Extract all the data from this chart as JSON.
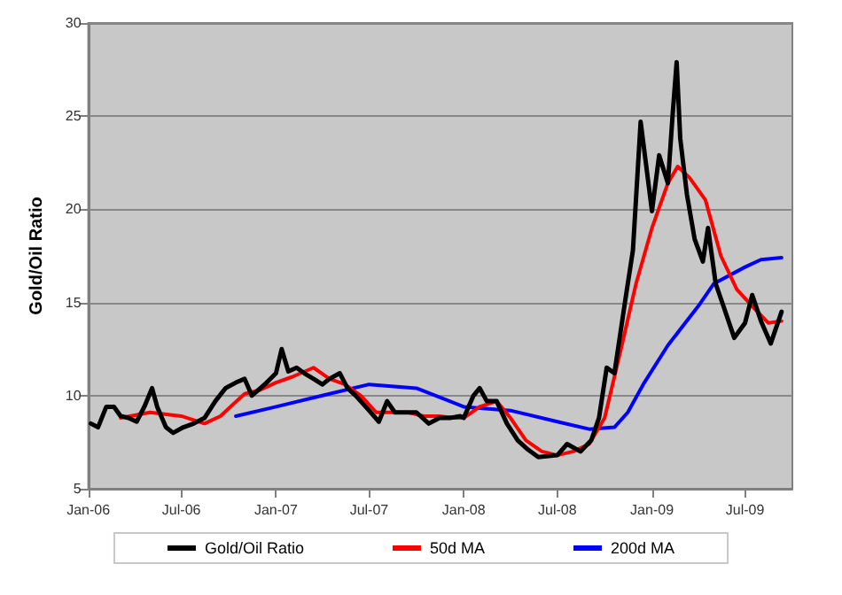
{
  "chart_data": {
    "type": "line",
    "ylabel": "Gold/Oil Ratio",
    "xlim": [
      "2006-01-01",
      "2009-10-01"
    ],
    "xticks": [
      {
        "value": "2006-01-01",
        "label": "Jan-06"
      },
      {
        "value": "2006-07-01",
        "label": "Jul-06"
      },
      {
        "value": "2007-01-01",
        "label": "Jan-07"
      },
      {
        "value": "2007-07-01",
        "label": "Jul-07"
      },
      {
        "value": "2008-01-01",
        "label": "Jan-08"
      },
      {
        "value": "2008-07-01",
        "label": "Jul-08"
      },
      {
        "value": "2009-01-01",
        "label": "Jan-09"
      },
      {
        "value": "2009-07-01",
        "label": "Jul-09"
      }
    ],
    "ylim": [
      5,
      30
    ],
    "yticks": [
      5,
      10,
      15,
      20,
      25,
      30
    ],
    "grid": "y",
    "legend": "bottom",
    "marker": "none",
    "line_style": "solid",
    "series": [
      {
        "name": "Gold/Oil Ratio",
        "color": "#000000",
        "x": [
          "2006-01-06",
          "2006-01-20",
          "2006-02-05",
          "2006-02-20",
          "2006-03-05",
          "2006-03-20",
          "2006-04-05",
          "2006-04-20",
          "2006-05-05",
          "2006-05-15",
          "2006-06-01",
          "2006-06-15",
          "2006-07-05",
          "2006-07-25",
          "2006-08-15",
          "2006-09-05",
          "2006-09-25",
          "2006-10-15",
          "2006-11-01",
          "2006-11-15",
          "2006-12-10",
          "2007-01-01",
          "2007-01-12",
          "2007-01-25",
          "2007-02-10",
          "2007-02-25",
          "2007-03-15",
          "2007-04-01",
          "2007-04-15",
          "2007-05-05",
          "2007-05-20",
          "2007-06-05",
          "2007-07-01",
          "2007-07-20",
          "2007-08-05",
          "2007-08-20",
          "2007-09-10",
          "2007-10-01",
          "2007-10-25",
          "2007-11-15",
          "2007-12-05",
          "2007-12-25",
          "2008-01-01",
          "2008-01-20",
          "2008-02-01",
          "2008-02-15",
          "2008-03-05",
          "2008-03-25",
          "2008-04-15",
          "2008-05-05",
          "2008-05-25",
          "2008-07-01",
          "2008-07-20",
          "2008-08-15",
          "2008-09-05",
          "2008-09-20",
          "2008-10-05",
          "2008-10-20",
          "2008-11-10",
          "2008-11-25",
          "2008-12-10",
          "2009-01-01",
          "2009-01-15",
          "2009-02-01",
          "2009-02-10",
          "2009-02-18",
          "2009-02-25",
          "2009-03-10",
          "2009-03-25",
          "2009-04-10",
          "2009-04-20",
          "2009-05-05",
          "2009-05-20",
          "2009-06-10",
          "2009-07-01",
          "2009-07-15",
          "2009-08-01",
          "2009-08-20",
          "2009-09-10"
        ],
        "values": [
          8.5,
          8.3,
          9.4,
          9.4,
          8.9,
          8.8,
          8.6,
          9.4,
          10.4,
          9.4,
          8.3,
          8.0,
          8.3,
          8.5,
          8.8,
          9.7,
          10.4,
          10.7,
          10.9,
          10.0,
          10.6,
          11.2,
          12.5,
          11.3,
          11.5,
          11.2,
          10.9,
          10.6,
          10.9,
          11.2,
          10.4,
          10.0,
          9.2,
          8.6,
          9.7,
          9.1,
          9.1,
          9.1,
          8.5,
          8.8,
          8.8,
          8.9,
          8.8,
          10.0,
          10.4,
          9.7,
          9.7,
          8.5,
          7.6,
          7.1,
          6.7,
          6.8,
          7.4,
          7.0,
          7.6,
          8.8,
          11.5,
          11.2,
          15.1,
          17.8,
          24.7,
          19.9,
          22.9,
          21.4,
          25.0,
          27.9,
          23.8,
          20.8,
          18.4,
          17.2,
          19.0,
          16.0,
          14.8,
          13.1,
          13.9,
          15.4,
          14.0,
          12.8,
          14.5
        ]
      },
      {
        "name": "50d MA",
        "color": "#ff0000",
        "x": [
          "2006-03-05",
          "2006-05-01",
          "2006-07-01",
          "2006-08-15",
          "2006-09-15",
          "2006-11-01",
          "2006-12-01",
          "2007-01-01",
          "2007-02-01",
          "2007-03-15",
          "2007-04-15",
          "2007-05-15",
          "2007-06-15",
          "2007-07-15",
          "2007-08-15",
          "2007-09-15",
          "2007-10-15",
          "2007-11-15",
          "2007-12-15",
          "2008-01-01",
          "2008-02-01",
          "2008-03-05",
          "2008-04-01",
          "2008-05-01",
          "2008-06-01",
          "2008-07-01",
          "2008-08-01",
          "2008-09-01",
          "2008-10-01",
          "2008-11-01",
          "2008-12-01",
          "2009-01-01",
          "2009-02-01",
          "2009-02-20",
          "2009-03-15",
          "2009-04-15",
          "2009-05-15",
          "2009-06-15",
          "2009-07-15",
          "2009-08-15",
          "2009-09-10"
        ],
        "values": [
          8.8,
          9.1,
          8.9,
          8.5,
          8.9,
          10.1,
          10.3,
          10.7,
          11.0,
          11.5,
          10.9,
          10.6,
          10.0,
          9.1,
          9.1,
          9.1,
          8.9,
          8.9,
          8.8,
          8.8,
          9.4,
          9.7,
          8.8,
          7.6,
          7.0,
          6.8,
          7.0,
          7.4,
          8.8,
          12.4,
          16.0,
          19.0,
          21.4,
          22.3,
          21.7,
          20.5,
          17.5,
          15.7,
          14.8,
          13.9,
          14.0
        ]
      },
      {
        "name": "200d MA",
        "color": "#0000ff",
        "x": [
          "2006-10-15",
          "2007-01-01",
          "2007-04-01",
          "2007-07-01",
          "2007-10-01",
          "2008-01-01",
          "2008-04-01",
          "2008-07-01",
          "2008-09-01",
          "2008-10-20",
          "2008-11-15",
          "2008-12-15",
          "2009-02-01",
          "2009-04-01",
          "2009-05-01",
          "2009-07-01",
          "2009-08-01",
          "2009-09-10"
        ],
        "values": [
          8.9,
          9.4,
          10.0,
          10.6,
          10.4,
          9.4,
          9.2,
          8.6,
          8.2,
          8.3,
          9.1,
          10.6,
          12.7,
          14.8,
          16.0,
          16.9,
          17.3,
          17.4
        ]
      }
    ]
  }
}
